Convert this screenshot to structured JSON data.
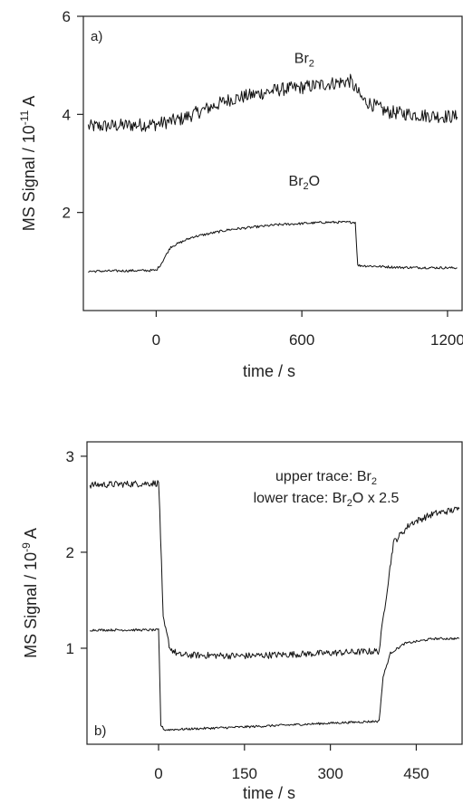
{
  "chart_data": [
    {
      "type": "line",
      "panel_label": "a)",
      "xlabel": "time / s",
      "ylabel": "MS Signal / 10",
      "ylabel_exp": "-11",
      "ylabel_unit": " A",
      "xlim": [
        -300,
        1260
      ],
      "ylim": [
        0,
        6
      ],
      "xticks": [
        0,
        600,
        1200
      ],
      "yticks": [
        2,
        4,
        6
      ],
      "xtick_labels": [
        "0",
        "600",
        "1200"
      ],
      "ytick_labels": [
        "2",
        "4",
        "6"
      ],
      "grid": false,
      "annotations": [
        {
          "text": "Br",
          "sub": "2",
          "suffix": "",
          "x": 610,
          "y": 5.05
        },
        {
          "text": "Br",
          "sub": "2",
          "suffix": "O",
          "x": 610,
          "y": 2.55
        }
      ],
      "series": [
        {
          "name": "Br2",
          "noise": 0.14,
          "points": [
            [
              -280,
              3.75
            ],
            [
              0,
              3.8
            ],
            [
              100,
              3.9
            ],
            [
              300,
              4.3
            ],
            [
              500,
              4.5
            ],
            [
              600,
              4.55
            ],
            [
              700,
              4.62
            ],
            [
              800,
              4.68
            ],
            [
              850,
              4.3
            ],
            [
              950,
              4.05
            ],
            [
              1100,
              3.98
            ],
            [
              1240,
              3.95
            ]
          ]
        },
        {
          "name": "Br2O",
          "noise": 0.025,
          "points": [
            [
              -280,
              0.8
            ],
            [
              0,
              0.82
            ],
            [
              20,
              0.95
            ],
            [
              60,
              1.3
            ],
            [
              150,
              1.5
            ],
            [
              300,
              1.65
            ],
            [
              500,
              1.75
            ],
            [
              700,
              1.8
            ],
            [
              820,
              1.8
            ],
            [
              830,
              0.92
            ],
            [
              1000,
              0.88
            ],
            [
              1240,
              0.87
            ]
          ]
        }
      ]
    },
    {
      "type": "line",
      "panel_label": "b)",
      "xlabel": "time / s",
      "ylabel": "MS Signal / 10",
      "ylabel_exp": "-9",
      "ylabel_unit": " A",
      "xlim": [
        -125,
        530
      ],
      "ylim": [
        0,
        3.15
      ],
      "xticks": [
        0,
        150,
        300,
        450
      ],
      "yticks": [
        1,
        2,
        3
      ],
      "xtick_labels": [
        "0",
        "150",
        "300",
        "450"
      ],
      "ytick_labels": [
        "1",
        "2",
        "3"
      ],
      "grid": false,
      "legend_lines": [
        {
          "text": "upper trace: Br",
          "sub": "2",
          "suffix": ""
        },
        {
          "text": "lower trace: Br",
          "sub": "2",
          "suffix": "O x 2.5"
        }
      ],
      "series": [
        {
          "name": "Br2",
          "noise": 0.035,
          "points": [
            [
              -120,
              2.7
            ],
            [
              0,
              2.72
            ],
            [
              2,
              2.45
            ],
            [
              8,
              1.3
            ],
            [
              20,
              1.0
            ],
            [
              35,
              0.93
            ],
            [
              150,
              0.92
            ],
            [
              300,
              0.95
            ],
            [
              385,
              0.97
            ],
            [
              392,
              1.3
            ],
            [
              410,
              2.1
            ],
            [
              440,
              2.3
            ],
            [
              480,
              2.4
            ],
            [
              525,
              2.45
            ]
          ]
        },
        {
          "name": "Br2O x 2.5",
          "noise": 0.012,
          "points": [
            [
              -120,
              1.19
            ],
            [
              0,
              1.19
            ],
            [
              4,
              0.2
            ],
            [
              10,
              0.15
            ],
            [
              150,
              0.18
            ],
            [
              300,
              0.22
            ],
            [
              385,
              0.24
            ],
            [
              392,
              0.7
            ],
            [
              405,
              0.95
            ],
            [
              430,
              1.05
            ],
            [
              480,
              1.1
            ],
            [
              525,
              1.1
            ]
          ]
        }
      ]
    }
  ]
}
